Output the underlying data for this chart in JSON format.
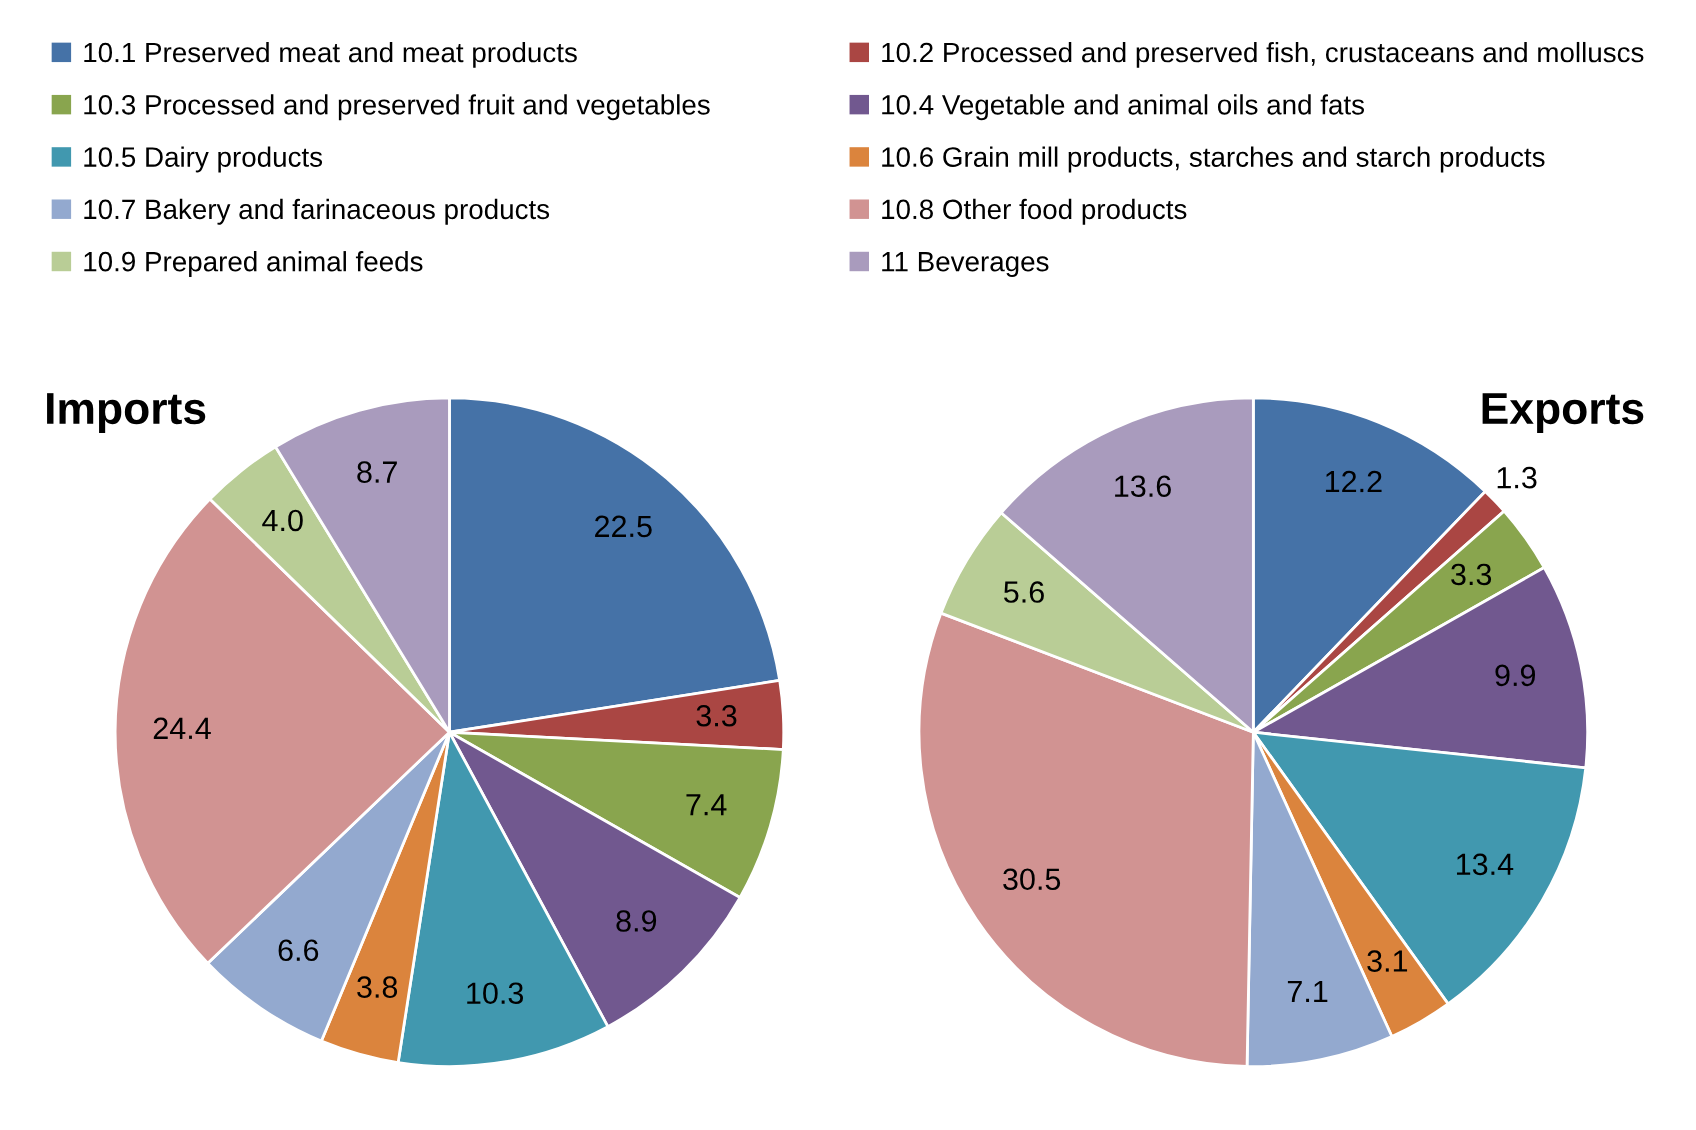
{
  "chart_data": [
    {
      "type": "pie",
      "title": "Imports",
      "legend": "top",
      "data_labels": true,
      "categories": [
        "10.1 Preserved meat and meat products",
        "10.2 Processed and preserved fish, crustaceans and molluscs",
        "10.3 Processed and preserved fruit and vegetables",
        "10.4 Vegetable and animal oils and fats",
        "10.5 Dairy products",
        "10.6 Grain mill products, starches and starch products",
        "10.7 Bakery and farinaceous products",
        "10.8 Other food products",
        "10.9 Prepared animal feeds",
        "11 Beverages"
      ],
      "values": [
        22.5,
        3.3,
        7.4,
        8.9,
        10.3,
        3.8,
        6.6,
        24.4,
        4.0,
        8.7
      ],
      "value_labels": [
        "22.5",
        "3.3",
        "7.4",
        "8.9",
        "10.3",
        "3.8",
        "6.6",
        "24.4",
        "4.0",
        "8.7"
      ],
      "colors": [
        "#4572a7",
        "#aa4643",
        "#89a54e",
        "#71588f",
        "#4198af",
        "#db843d",
        "#93a9cf",
        "#d19392",
        "#b9cd96",
        "#a99bbd"
      ]
    },
    {
      "type": "pie",
      "title": "Exports",
      "data_labels": true,
      "categories": [
        null,
        null,
        null,
        null,
        null,
        null,
        null,
        null,
        null,
        null
      ],
      "values": [
        12.2,
        1.3,
        3.3,
        9.9,
        13.4,
        3.1,
        7.1,
        30.5,
        5.6,
        13.6
      ],
      "value_labels": [
        "12.2",
        "1.3",
        "3.3",
        "9.9",
        "13.4",
        "3.1",
        "7.1",
        "30.5",
        "5.6",
        "13.6"
      ],
      "colors": [
        "#4572a7",
        "#aa4643",
        "#89a54e",
        "#71588f",
        "#4198af",
        "#db843d",
        "#93a9cf",
        "#d19392",
        "#b9cd96",
        "#a99bbd"
      ]
    }
  ]
}
